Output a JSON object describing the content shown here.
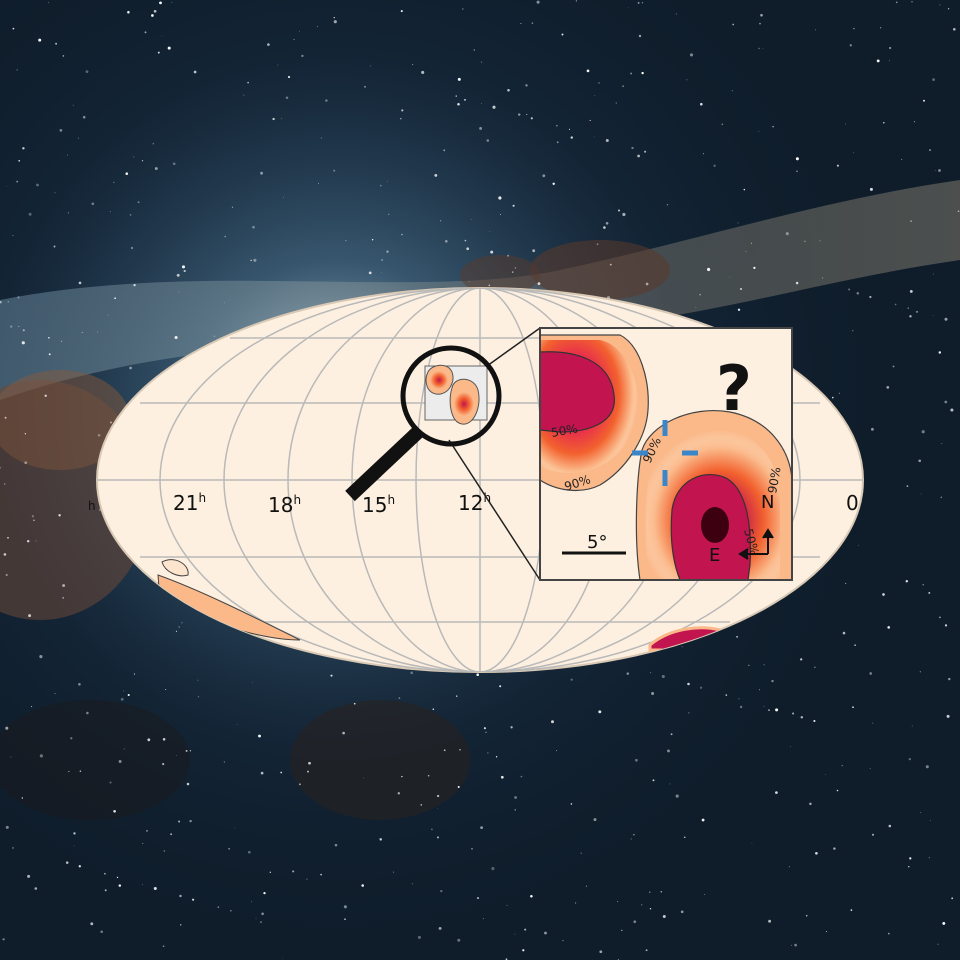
{
  "skymap": {
    "ra_labels": [
      "21",
      "18",
      "15",
      "12",
      "0"
    ],
    "ra_unit": "h",
    "edge_label_left": "h"
  },
  "inset": {
    "contour_labels": [
      "50%",
      "90%",
      "90%",
      "90%",
      "90%",
      "50%"
    ],
    "scale_bar_label": "5°",
    "compass_north": "N",
    "compass_east": "E",
    "question_mark": "?"
  },
  "colors": {
    "map_background": "#fdf0e0",
    "grid": "#b9b9b9",
    "probability_high": "#c2144e",
    "probability_mid": "#f2612e",
    "probability_low": "#fbb98a",
    "crosshair": "#3a86c8",
    "magnifier": "#111111"
  }
}
